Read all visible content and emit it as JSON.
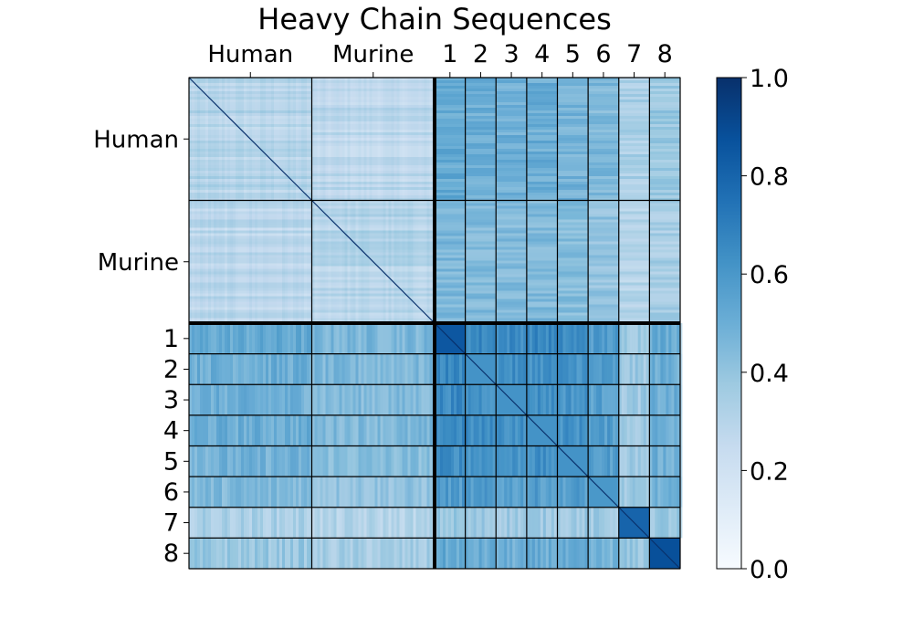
{
  "chart_data": {
    "type": "heatmap",
    "title": "Heavy Chain Sequences",
    "groups": [
      "Human",
      "Murine",
      "1",
      "2",
      "3",
      "4",
      "5",
      "6",
      "7",
      "8"
    ],
    "group_units": [
      4,
      4,
      1,
      1,
      1,
      1,
      1,
      1,
      1,
      1
    ],
    "block_values": [
      [
        0.3,
        0.27,
        0.52,
        0.5,
        0.49,
        0.5,
        0.48,
        0.45,
        0.33,
        0.38
      ],
      [
        0.27,
        0.3,
        0.46,
        0.45,
        0.44,
        0.45,
        0.43,
        0.4,
        0.3,
        0.34
      ],
      [
        0.52,
        0.46,
        0.85,
        0.66,
        0.65,
        0.66,
        0.64,
        0.58,
        0.38,
        0.52
      ],
      [
        0.5,
        0.45,
        0.66,
        0.62,
        0.63,
        0.63,
        0.62,
        0.57,
        0.37,
        0.5
      ],
      [
        0.49,
        0.44,
        0.65,
        0.63,
        0.62,
        0.63,
        0.61,
        0.56,
        0.37,
        0.49
      ],
      [
        0.5,
        0.45,
        0.66,
        0.63,
        0.63,
        0.62,
        0.62,
        0.57,
        0.37,
        0.5
      ],
      [
        0.48,
        0.43,
        0.64,
        0.62,
        0.61,
        0.62,
        0.62,
        0.57,
        0.37,
        0.49
      ],
      [
        0.45,
        0.4,
        0.58,
        0.57,
        0.56,
        0.57,
        0.57,
        0.6,
        0.36,
        0.47
      ],
      [
        0.33,
        0.3,
        0.38,
        0.37,
        0.37,
        0.37,
        0.37,
        0.36,
        0.8,
        0.38
      ],
      [
        0.38,
        0.34,
        0.52,
        0.5,
        0.49,
        0.5,
        0.49,
        0.47,
        0.38,
        0.88
      ]
    ],
    "diagonal": 1.0,
    "colormap": "Blues",
    "colorbar": {
      "min": 0.0,
      "max": 1.0,
      "ticks": [
        "0.0",
        "0.2",
        "0.4",
        "0.6",
        "0.8",
        "1.0"
      ]
    },
    "grid": true
  },
  "colors": {
    "cmap_low": "#f7fbff",
    "cmap_high": "#08306b",
    "block_border": "#000000"
  }
}
